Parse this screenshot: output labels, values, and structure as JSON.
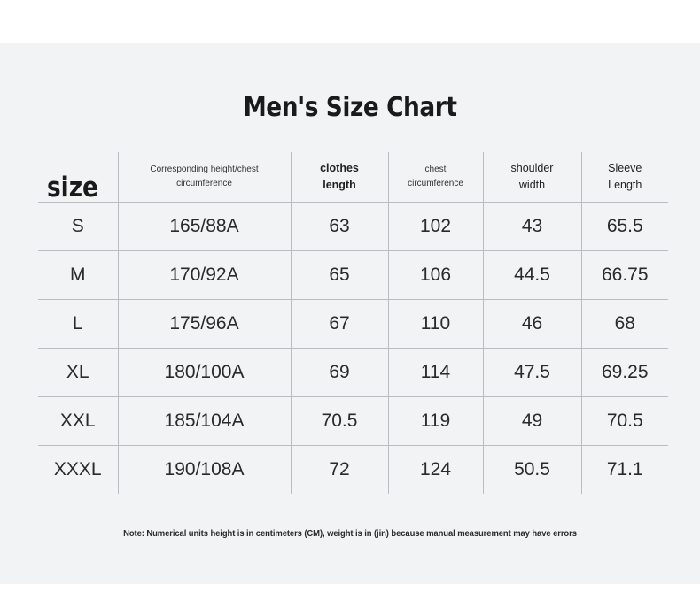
{
  "title": "Men's Size Chart",
  "headers": {
    "size": "size",
    "height_chest": [
      "Corresponding height/chest",
      "circumference"
    ],
    "clothes_length": [
      "clothes",
      "length"
    ],
    "chest_circumference": [
      "chest",
      "circumference"
    ],
    "shoulder_width": [
      "shoulder",
      "width"
    ],
    "sleeve_length": [
      "Sleeve",
      "Length"
    ]
  },
  "rows": [
    {
      "size": "S",
      "height_chest": "165/88A",
      "clothes_length": "63",
      "chest": "102",
      "shoulder": "43",
      "sleeve": "65.5"
    },
    {
      "size": "M",
      "height_chest": "170/92A",
      "clothes_length": "65",
      "chest": "106",
      "shoulder": "44.5",
      "sleeve": "66.75"
    },
    {
      "size": "L",
      "height_chest": "175/96A",
      "clothes_length": "67",
      "chest": "110",
      "shoulder": "46",
      "sleeve": "68"
    },
    {
      "size": "XL",
      "height_chest": "180/100A",
      "clothes_length": "69",
      "chest": "114",
      "shoulder": "47.5",
      "sleeve": "69.25"
    },
    {
      "size": "XXL",
      "height_chest": "185/104A",
      "clothes_length": "70.5",
      "chest": "119",
      "shoulder": "49",
      "sleeve": "70.5"
    },
    {
      "size": "XXXL",
      "height_chest": "190/108A",
      "clothes_length": "72",
      "chest": "124",
      "shoulder": "50.5",
      "sleeve": "71.1"
    }
  ],
  "note": "Note: Numerical units height is in centimeters (CM), weight is in (jin) because manual measurement may have errors"
}
